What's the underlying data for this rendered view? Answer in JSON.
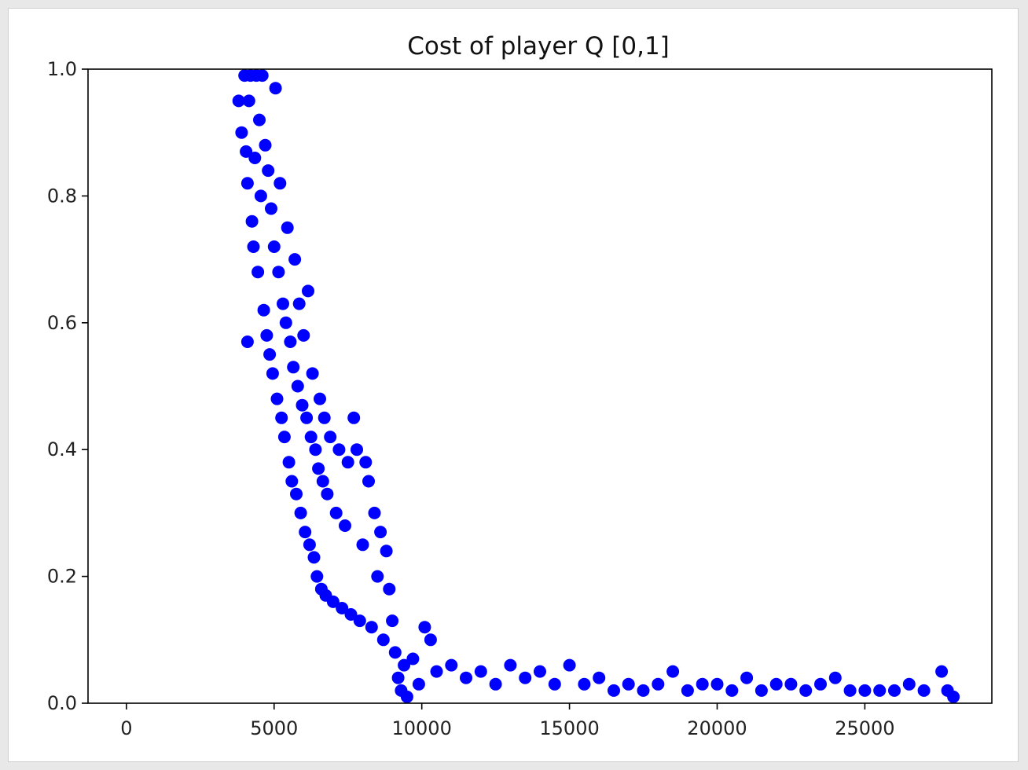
{
  "chart_data": {
    "type": "scatter",
    "title": "Cost of player Q [0,1]",
    "xlabel": "",
    "ylabel": "",
    "xlim": [
      -1300,
      29300
    ],
    "ylim": [
      0,
      1
    ],
    "x_ticks": [
      0,
      5000,
      10000,
      15000,
      20000,
      25000
    ],
    "x_tick_labels": [
      "0",
      "5000",
      "10000",
      "15000",
      "20000",
      "25000"
    ],
    "y_ticks": [
      0,
      0.2,
      0.4,
      0.6,
      0.8,
      1.0
    ],
    "y_tick_labels": [
      "0.0",
      "0.2",
      "0.4",
      "0.6",
      "0.8",
      "1.0"
    ],
    "grid": false,
    "marker_color": "#0000ff",
    "series": [
      {
        "points": [
          [
            3800,
            0.95
          ],
          [
            3900,
            0.9
          ],
          [
            4000,
            0.99
          ],
          [
            4050,
            0.87
          ],
          [
            4100,
            0.82
          ],
          [
            4150,
            0.95
          ],
          [
            4200,
            0.99
          ],
          [
            4250,
            0.76
          ],
          [
            4300,
            0.72
          ],
          [
            4350,
            0.86
          ],
          [
            4400,
            0.99
          ],
          [
            4450,
            0.68
          ],
          [
            4500,
            0.92
          ],
          [
            4550,
            0.8
          ],
          [
            4600,
            0.99
          ],
          [
            4650,
            0.62
          ],
          [
            4700,
            0.88
          ],
          [
            4750,
            0.58
          ],
          [
            4800,
            0.84
          ],
          [
            4850,
            0.55
          ],
          [
            4900,
            0.78
          ],
          [
            4950,
            0.52
          ],
          [
            5000,
            0.72
          ],
          [
            4100,
            0.57
          ],
          [
            5050,
            0.97
          ],
          [
            5100,
            0.48
          ],
          [
            5150,
            0.68
          ],
          [
            5200,
            0.82
          ],
          [
            5250,
            0.45
          ],
          [
            5300,
            0.63
          ],
          [
            5350,
            0.42
          ],
          [
            5400,
            0.6
          ],
          [
            5450,
            0.75
          ],
          [
            5500,
            0.38
          ],
          [
            5550,
            0.57
          ],
          [
            5600,
            0.35
          ],
          [
            5650,
            0.53
          ],
          [
            5700,
            0.7
          ],
          [
            5750,
            0.33
          ],
          [
            5800,
            0.5
          ],
          [
            5850,
            0.63
          ],
          [
            5900,
            0.3
          ],
          [
            5950,
            0.47
          ],
          [
            6000,
            0.58
          ],
          [
            6050,
            0.27
          ],
          [
            6100,
            0.45
          ],
          [
            6150,
            0.65
          ],
          [
            6200,
            0.25
          ],
          [
            6250,
            0.42
          ],
          [
            6300,
            0.52
          ],
          [
            6350,
            0.23
          ],
          [
            6400,
            0.4
          ],
          [
            6450,
            0.2
          ],
          [
            6500,
            0.37
          ],
          [
            6550,
            0.48
          ],
          [
            6600,
            0.18
          ],
          [
            6650,
            0.35
          ],
          [
            6700,
            0.45
          ],
          [
            6750,
            0.17
          ],
          [
            6800,
            0.33
          ],
          [
            6900,
            0.42
          ],
          [
            7000,
            0.16
          ],
          [
            7100,
            0.3
          ],
          [
            7200,
            0.4
          ],
          [
            7300,
            0.15
          ],
          [
            7400,
            0.28
          ],
          [
            7500,
            0.38
          ],
          [
            7600,
            0.14
          ],
          [
            7700,
            0.45
          ],
          [
            7800,
            0.4
          ],
          [
            7900,
            0.13
          ],
          [
            8000,
            0.25
          ],
          [
            8100,
            0.38
          ],
          [
            8200,
            0.35
          ],
          [
            8300,
            0.12
          ],
          [
            8400,
            0.3
          ],
          [
            8500,
            0.2
          ],
          [
            8600,
            0.27
          ],
          [
            8700,
            0.1
          ],
          [
            8800,
            0.24
          ],
          [
            8900,
            0.18
          ],
          [
            9000,
            0.13
          ],
          [
            9100,
            0.08
          ],
          [
            9200,
            0.04
          ],
          [
            9300,
            0.02
          ],
          [
            9400,
            0.06
          ],
          [
            9500,
            0.01
          ],
          [
            9700,
            0.07
          ],
          [
            9900,
            0.03
          ],
          [
            10100,
            0.12
          ],
          [
            10300,
            0.1
          ],
          [
            10500,
            0.05
          ],
          [
            11000,
            0.06
          ],
          [
            11500,
            0.04
          ],
          [
            12000,
            0.05
          ],
          [
            12500,
            0.03
          ],
          [
            13000,
            0.06
          ],
          [
            13500,
            0.04
          ],
          [
            14000,
            0.05
          ],
          [
            14500,
            0.03
          ],
          [
            15000,
            0.06
          ],
          [
            15500,
            0.03
          ],
          [
            16000,
            0.04
          ],
          [
            16500,
            0.02
          ],
          [
            17000,
            0.03
          ],
          [
            17500,
            0.02
          ],
          [
            18000,
            0.03
          ],
          [
            18500,
            0.05
          ],
          [
            19000,
            0.02
          ],
          [
            19500,
            0.03
          ],
          [
            20000,
            0.03
          ],
          [
            20500,
            0.02
          ],
          [
            21000,
            0.04
          ],
          [
            21500,
            0.02
          ],
          [
            22000,
            0.03
          ],
          [
            22500,
            0.03
          ],
          [
            23000,
            0.02
          ],
          [
            23500,
            0.03
          ],
          [
            24000,
            0.04
          ],
          [
            24500,
            0.02
          ],
          [
            25000,
            0.02
          ],
          [
            25500,
            0.02
          ],
          [
            26000,
            0.02
          ],
          [
            26500,
            0.03
          ],
          [
            27000,
            0.02
          ],
          [
            27600,
            0.05
          ],
          [
            27800,
            0.02
          ],
          [
            28000,
            0.01
          ]
        ]
      }
    ]
  }
}
